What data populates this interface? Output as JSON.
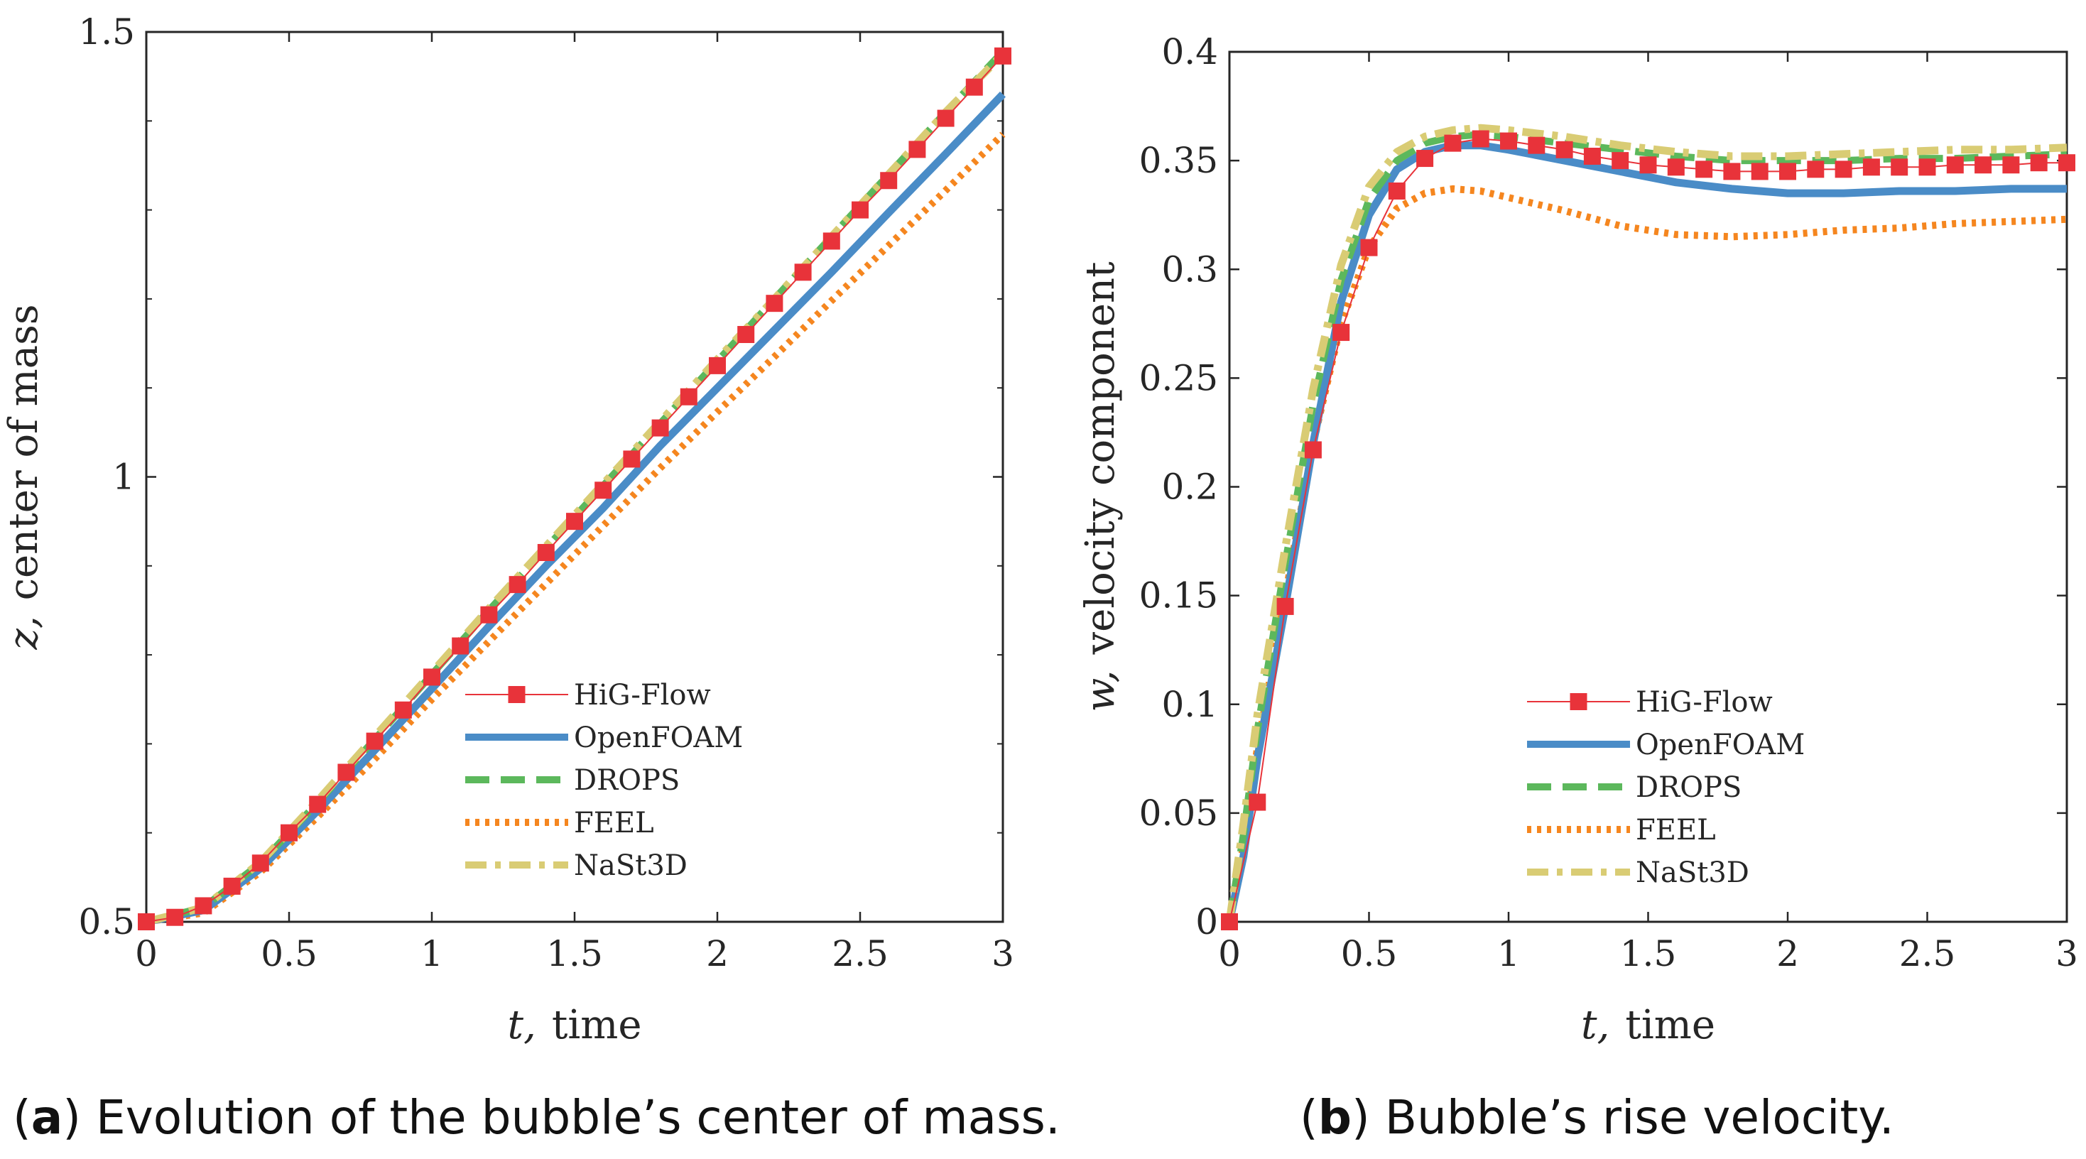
{
  "captions": [
    {
      "letter": "a",
      "text": "Evolution of the bubble’s center of mass."
    },
    {
      "letter": "b",
      "text": "Bubble’s rise velocity."
    }
  ],
  "series_style": [
    {
      "name": "HiG-Flow",
      "color": "#e8333a",
      "style": "thin-marker"
    },
    {
      "name": "OpenFOAM",
      "color": "#4a8cc7",
      "style": "solid"
    },
    {
      "name": "DROPS",
      "color": "#5cb85c",
      "style": "dashed"
    },
    {
      "name": "FEEL",
      "color": "#f5861f",
      "style": "dotted"
    },
    {
      "name": "NaSt3D",
      "color": "#d9cc74",
      "style": "dashdot"
    }
  ],
  "chart_data": [
    {
      "type": "line",
      "title": "",
      "xlabel_var": "t,",
      "xlabel": "time",
      "ylabel_var": "z,",
      "ylabel": "center of mass",
      "xlim": [
        0,
        3
      ],
      "ylim": [
        0.5,
        1.5
      ],
      "xticks": [
        0,
        0.5,
        1,
        1.5,
        2,
        2.5,
        3
      ],
      "xtick_labels": [
        "0",
        "0.5",
        "1",
        "1.5",
        "2",
        "2.5",
        "3"
      ],
      "yticks": [
        0.5,
        1,
        1.5
      ],
      "ytick_labels": [
        "0.5",
        "1",
        "1.5"
      ],
      "legend_position": "lower-right",
      "series": [
        {
          "name": "HiG-Flow",
          "x": [
            0,
            0.1,
            0.2,
            0.3,
            0.4,
            0.5,
            0.6,
            0.7,
            0.8,
            0.9,
            1.0,
            1.1,
            1.2,
            1.3,
            1.4,
            1.5,
            1.6,
            1.7,
            1.8,
            1.9,
            2.0,
            2.1,
            2.2,
            2.3,
            2.4,
            2.5,
            2.6,
            2.7,
            2.8,
            2.9,
            3.0
          ],
          "y": [
            0.5,
            0.505,
            0.518,
            0.54,
            0.566,
            0.6,
            0.632,
            0.668,
            0.703,
            0.738,
            0.775,
            0.81,
            0.845,
            0.879,
            0.915,
            0.95,
            0.985,
            1.02,
            1.055,
            1.09,
            1.125,
            1.16,
            1.195,
            1.23,
            1.265,
            1.3,
            1.333,
            1.368,
            1.403,
            1.438,
            1.473
          ]
        },
        {
          "name": "OpenFOAM",
          "x": [
            0,
            0.2,
            0.4,
            0.6,
            0.8,
            1.0,
            1.2,
            1.4,
            1.6,
            1.8,
            2.0,
            2.2,
            2.4,
            2.6,
            2.8,
            3.0
          ],
          "y": [
            0.5,
            0.513,
            0.56,
            0.625,
            0.693,
            0.762,
            0.832,
            0.9,
            0.965,
            1.035,
            1.1,
            1.165,
            1.23,
            1.297,
            1.363,
            1.43
          ]
        },
        {
          "name": "DROPS",
          "x": [
            0,
            0.2,
            0.4,
            0.6,
            0.8,
            1.0,
            1.2,
            1.4,
            1.6,
            1.8,
            2.0,
            2.2,
            2.4,
            2.6,
            2.8,
            3.0
          ],
          "y": [
            0.5,
            0.516,
            0.566,
            0.634,
            0.705,
            0.778,
            0.85,
            0.92,
            0.99,
            1.06,
            1.13,
            1.2,
            1.27,
            1.34,
            1.41,
            1.478
          ]
        },
        {
          "name": "FEEL",
          "x": [
            0,
            0.2,
            0.4,
            0.6,
            0.8,
            1.0,
            1.2,
            1.4,
            1.6,
            1.8,
            2.0,
            2.2,
            2.4,
            2.6,
            2.8,
            3.0
          ],
          "y": [
            0.5,
            0.51,
            0.556,
            0.618,
            0.683,
            0.75,
            0.815,
            0.88,
            0.945,
            1.01,
            1.073,
            1.135,
            1.198,
            1.26,
            1.322,
            1.385
          ]
        },
        {
          "name": "NaSt3D",
          "x": [
            0,
            0.2,
            0.4,
            0.6,
            0.8,
            1.0,
            1.2,
            1.4,
            1.6,
            1.8,
            2.0,
            2.2,
            2.4,
            2.6,
            2.8,
            3.0
          ],
          "y": [
            0.5,
            0.516,
            0.567,
            0.636,
            0.708,
            0.78,
            0.852,
            0.922,
            0.992,
            1.062,
            1.132,
            1.2,
            1.27,
            1.34,
            1.41,
            1.475
          ]
        }
      ]
    },
    {
      "type": "line",
      "title": "",
      "xlabel_var": "t,",
      "xlabel": "time",
      "ylabel_var": "w,",
      "ylabel": "velocity component",
      "xlim": [
        0,
        3
      ],
      "ylim": [
        0,
        0.4
      ],
      "xticks": [
        0,
        0.5,
        1,
        1.5,
        2,
        2.5,
        3
      ],
      "xtick_labels": [
        "0",
        "0.5",
        "1",
        "1.5",
        "2",
        "2.5",
        "3"
      ],
      "yticks": [
        0,
        0.05,
        0.1,
        0.15,
        0.2,
        0.25,
        0.3,
        0.35,
        0.4
      ],
      "ytick_labels": [
        "0",
        "0.05",
        "0.1",
        "0.15",
        "0.2",
        "0.25",
        "0.3",
        "0.35",
        "0.4"
      ],
      "legend_position": "lower-right",
      "series": [
        {
          "name": "HiG-Flow",
          "x": [
            0,
            0.1,
            0.2,
            0.3,
            0.4,
            0.5,
            0.6,
            0.7,
            0.8,
            0.9,
            1.0,
            1.1,
            1.2,
            1.3,
            1.4,
            1.5,
            1.6,
            1.7,
            1.8,
            1.9,
            2.0,
            2.1,
            2.2,
            2.3,
            2.4,
            2.5,
            2.6,
            2.7,
            2.8,
            2.9,
            3.0
          ],
          "y": [
            0,
            0.055,
            0.145,
            0.217,
            0.271,
            0.31,
            0.336,
            0.351,
            0.358,
            0.36,
            0.359,
            0.357,
            0.355,
            0.352,
            0.35,
            0.348,
            0.347,
            0.346,
            0.345,
            0.345,
            0.345,
            0.346,
            0.346,
            0.347,
            0.347,
            0.347,
            0.348,
            0.348,
            0.348,
            0.349,
            0.349
          ]
        },
        {
          "name": "OpenFOAM",
          "x": [
            0,
            0.05,
            0.1,
            0.2,
            0.3,
            0.4,
            0.5,
            0.6,
            0.7,
            0.8,
            0.9,
            1.0,
            1.2,
            1.4,
            1.6,
            1.8,
            2.0,
            2.2,
            2.4,
            2.6,
            2.8,
            3.0
          ],
          "y": [
            0,
            0.03,
            0.075,
            0.145,
            0.22,
            0.285,
            0.325,
            0.346,
            0.354,
            0.357,
            0.357,
            0.355,
            0.35,
            0.345,
            0.34,
            0.337,
            0.335,
            0.335,
            0.336,
            0.336,
            0.337,
            0.337
          ]
        },
        {
          "name": "DROPS",
          "x": [
            0,
            0.05,
            0.1,
            0.2,
            0.3,
            0.4,
            0.5,
            0.6,
            0.7,
            0.8,
            0.9,
            1.0,
            1.2,
            1.4,
            1.6,
            1.8,
            2.0,
            2.2,
            2.4,
            2.6,
            2.8,
            3.0
          ],
          "y": [
            0,
            0.04,
            0.088,
            0.165,
            0.238,
            0.295,
            0.332,
            0.35,
            0.358,
            0.361,
            0.362,
            0.361,
            0.358,
            0.355,
            0.352,
            0.35,
            0.35,
            0.35,
            0.351,
            0.351,
            0.352,
            0.353
          ]
        },
        {
          "name": "FEEL",
          "x": [
            0,
            0.05,
            0.1,
            0.2,
            0.3,
            0.4,
            0.5,
            0.6,
            0.7,
            0.8,
            0.9,
            1.0,
            1.2,
            1.4,
            1.6,
            1.8,
            2.0,
            2.2,
            2.4,
            2.6,
            2.8,
            3.0
          ],
          "y": [
            0,
            0.035,
            0.08,
            0.15,
            0.22,
            0.275,
            0.31,
            0.328,
            0.335,
            0.337,
            0.336,
            0.333,
            0.327,
            0.32,
            0.316,
            0.315,
            0.316,
            0.318,
            0.319,
            0.321,
            0.322,
            0.323
          ]
        },
        {
          "name": "NaSt3D",
          "x": [
            0,
            0.05,
            0.1,
            0.2,
            0.3,
            0.4,
            0.5,
            0.6,
            0.7,
            0.8,
            0.9,
            1.0,
            1.2,
            1.4,
            1.6,
            1.8,
            2.0,
            2.2,
            2.4,
            2.6,
            2.8,
            3.0
          ],
          "y": [
            0,
            0.045,
            0.095,
            0.172,
            0.245,
            0.302,
            0.338,
            0.354,
            0.361,
            0.364,
            0.365,
            0.364,
            0.361,
            0.357,
            0.354,
            0.352,
            0.352,
            0.353,
            0.354,
            0.355,
            0.355,
            0.356
          ]
        }
      ]
    }
  ]
}
